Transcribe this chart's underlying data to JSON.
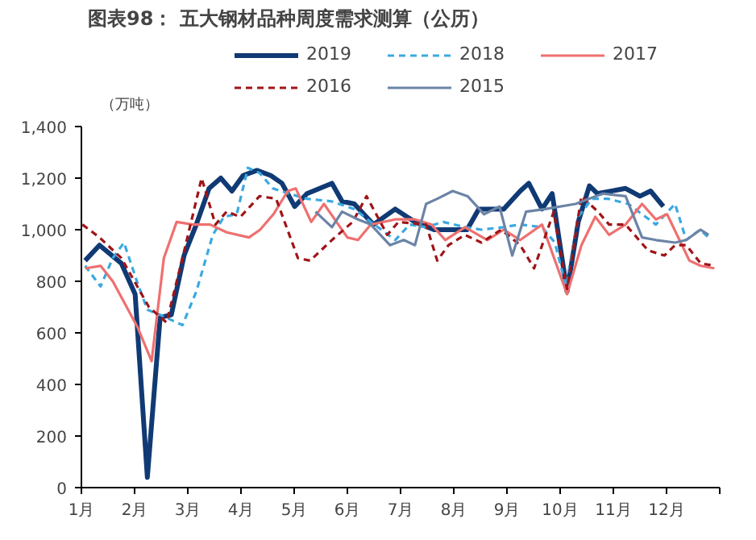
{
  "chart_data": {
    "type": "line",
    "title": "图表98：  五大钢材品种周度需求测算（公历）",
    "ylabel": "（万吨）",
    "xlim": [
      1,
      13
    ],
    "xticks": [
      {
        "value": 1,
        "label": "1月"
      },
      {
        "value": 2,
        "label": "2月"
      },
      {
        "value": 3,
        "label": "3月"
      },
      {
        "value": 4,
        "label": "4月"
      },
      {
        "value": 5,
        "label": "5月"
      },
      {
        "value": 6,
        "label": "6月"
      },
      {
        "value": 7,
        "label": "7月"
      },
      {
        "value": 8,
        "label": "8月"
      },
      {
        "value": 9,
        "label": "9月"
      },
      {
        "value": 10,
        "label": "10月"
      },
      {
        "value": 11,
        "label": "11月"
      },
      {
        "value": 12,
        "label": "12月"
      },
      {
        "value": 13,
        "label": null
      }
    ],
    "ylim": [
      0,
      1400
    ],
    "yticks": [
      0,
      200,
      400,
      600,
      800,
      {
        "value": 1000,
        "label": "1,000"
      },
      {
        "value": 1200,
        "label": "1,200"
      },
      {
        "value": 1400,
        "label": "1,400"
      }
    ],
    "grid": false,
    "legend": "top",
    "marker": "none",
    "series": [
      {
        "name": "2019",
        "color": "#103a74",
        "line_style": "solid",
        "x": [
          1.07,
          1.34,
          1.75,
          2.01,
          2.24,
          2.48,
          2.69,
          2.93,
          3.16,
          3.4,
          3.62,
          3.83,
          4.04,
          4.3,
          4.56,
          4.77,
          5.01,
          5.24,
          5.71,
          5.9,
          6.13,
          6.49,
          6.9,
          7.27,
          7.63,
          8.25,
          8.47,
          8.94,
          9.25,
          9.41,
          9.66,
          9.85,
          10.13,
          10.34,
          10.55,
          10.7,
          11.23,
          11.5,
          11.7,
          11.94
        ],
        "values": [
          880,
          940,
          870,
          750,
          40,
          660,
          670,
          900,
          1020,
          1160,
          1200,
          1150,
          1210,
          1230,
          1210,
          1180,
          1090,
          1140,
          1180,
          1110,
          1100,
          1020,
          1080,
          1030,
          1000,
          1000,
          1080,
          1080,
          1150,
          1180,
          1080,
          1140,
          760,
          1030,
          1170,
          1140,
          1160,
          1130,
          1150,
          1090
        ]
      },
      {
        "name": "2018",
        "color": "#3aa9e0",
        "line_style": "dashed",
        "x": [
          1.07,
          1.36,
          1.59,
          1.8,
          2.06,
          2.24,
          2.48,
          2.9,
          3.16,
          3.47,
          3.68,
          3.92,
          4.13,
          4.35,
          4.6,
          4.9,
          5.24,
          5.7,
          6.13,
          6.44,
          6.9,
          7.17,
          7.48,
          7.8,
          8.21,
          8.52,
          8.94,
          9.25,
          9.66,
          9.9,
          10.11,
          10.34,
          10.6,
          10.9,
          11.28,
          11.54,
          11.8,
          12.16,
          12.37,
          12.63,
          12.79
        ],
        "values": [
          860,
          780,
          890,
          950,
          790,
          690,
          670,
          630,
          760,
          980,
          1050,
          1060,
          1240,
          1220,
          1160,
          1140,
          1120,
          1110,
          1080,
          1030,
          960,
          1020,
          1010,
          1030,
          1010,
          1000,
          1010,
          1020,
          1010,
          950,
          780,
          1050,
          1120,
          1120,
          1100,
          1060,
          1020,
          1100,
          960,
          1000,
          970
        ]
      },
      {
        "name": "2017",
        "color": "#ee7070",
        "line_style": "solid",
        "x": [
          1.07,
          1.36,
          1.59,
          2.06,
          2.32,
          2.55,
          2.79,
          3.1,
          3.42,
          3.73,
          4.15,
          4.36,
          4.61,
          4.88,
          5.03,
          5.32,
          5.56,
          6.0,
          6.2,
          6.44,
          6.9,
          7.27,
          7.58,
          7.84,
          8.21,
          8.63,
          8.94,
          9.25,
          9.66,
          10.13,
          10.4,
          10.66,
          10.92,
          11.23,
          11.54,
          11.8,
          12.01,
          12.43,
          12.64,
          12.9
        ],
        "values": [
          850,
          860,
          800,
          620,
          490,
          890,
          1030,
          1020,
          1020,
          990,
          970,
          1000,
          1060,
          1150,
          1160,
          1030,
          1100,
          970,
          960,
          1020,
          1040,
          1040,
          1020,
          960,
          1010,
          960,
          1000,
          960,
          1020,
          750,
          940,
          1050,
          980,
          1020,
          1100,
          1040,
          1060,
          880,
          860,
          850
        ]
      },
      {
        "name": "2016",
        "color": "#a01418",
        "line_style": "dashed",
        "x": [
          1.02,
          1.34,
          1.75,
          2.27,
          2.6,
          2.9,
          3.26,
          3.52,
          3.73,
          3.99,
          4.35,
          4.66,
          5.07,
          5.3,
          5.71,
          6.1,
          6.36,
          6.75,
          6.96,
          7.48,
          7.69,
          7.9,
          8.21,
          8.52,
          8.89,
          9.25,
          9.51,
          9.88,
          10.13,
          10.4,
          10.71,
          10.92,
          11.23,
          11.65,
          11.96,
          12.16,
          12.37,
          12.64,
          12.9
        ],
        "values": [
          1020,
          970,
          890,
          700,
          640,
          890,
          1200,
          1020,
          1070,
          1050,
          1130,
          1120,
          890,
          880,
          960,
          1030,
          1130,
          980,
          1030,
          1020,
          880,
          940,
          980,
          950,
          1000,
          940,
          850,
          1070,
          770,
          1130,
          1070,
          1020,
          1020,
          920,
          900,
          940,
          940,
          870,
          860
        ]
      },
      {
        "name": "2015",
        "color": "#6b84a6",
        "line_style": "solid",
        "x": [
          5.4,
          5.71,
          5.9,
          6.2,
          6.44,
          6.8,
          7.06,
          7.27,
          7.48,
          7.69,
          7.98,
          8.26,
          8.57,
          8.86,
          9.1,
          9.36,
          9.72,
          10.29,
          10.8,
          11.23,
          11.54,
          11.8,
          12.16,
          12.37,
          12.64,
          12.79
        ],
        "values": [
          1070,
          1010,
          1070,
          1040,
          1020,
          940,
          960,
          940,
          1100,
          1120,
          1150,
          1130,
          1060,
          1090,
          900,
          1070,
          1080,
          1100,
          1140,
          1130,
          970,
          960,
          950,
          960,
          1000,
          980
        ]
      }
    ]
  }
}
